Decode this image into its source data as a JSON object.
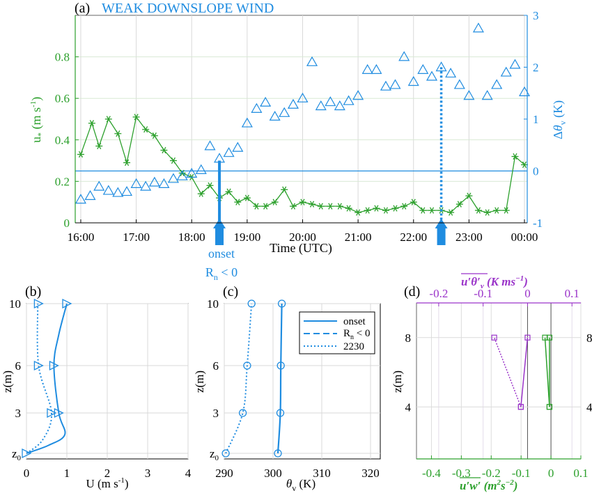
{
  "colors": {
    "green": "#2ca02c",
    "blue": "#1f8ce0",
    "purple": "#9a33c9",
    "grid": "#d9d9d9",
    "black": "#000000"
  },
  "chart_data": [
    {
      "panel": "(a)",
      "type": "scatter",
      "title": "WEAK DOWNSLOPE WIND",
      "xlabel": "Time (UTC)",
      "ylabel_left": "u* (m s-1)",
      "ylabel_right": "Δθv (K)",
      "xticks": [
        "16:00",
        "17:00",
        "18:00",
        "19:00",
        "20:00",
        "21:00",
        "22:00",
        "23:00",
        "00:00"
      ],
      "xlim": [
        15.9,
        24.05
      ],
      "ylim_left": [
        0,
        1.0
      ],
      "yticks_left": [
        "0",
        "0.2",
        "0.4",
        "0.6",
        "0.8"
      ],
      "ylim_right": [
        -1,
        3
      ],
      "yticks_right": [
        "-1",
        "0",
        "1",
        "2",
        "3"
      ],
      "grid": true,
      "series": [
        {
          "axis": "left",
          "marker": "asterisk",
          "color": "#2ca02c",
          "x": [
            16.0,
            16.2,
            16.33,
            16.5,
            16.67,
            16.83,
            17.0,
            17.17,
            17.33,
            17.5,
            17.67,
            17.83,
            18.0,
            18.17,
            18.33,
            18.5,
            18.67,
            18.83,
            19.0,
            19.17,
            19.33,
            19.5,
            19.67,
            19.83,
            20.0,
            20.17,
            20.33,
            20.5,
            20.67,
            20.83,
            21.0,
            21.17,
            21.33,
            21.5,
            21.67,
            21.83,
            22.0,
            22.17,
            22.33,
            22.5,
            22.67,
            22.83,
            23.0,
            23.17,
            23.33,
            23.5,
            23.67,
            23.83,
            24.0
          ],
          "y": [
            0.33,
            0.48,
            0.37,
            0.5,
            0.43,
            0.29,
            0.51,
            0.45,
            0.42,
            0.35,
            0.3,
            0.24,
            0.22,
            0.14,
            0.18,
            0.12,
            0.15,
            0.1,
            0.12,
            0.08,
            0.08,
            0.1,
            0.16,
            0.08,
            0.1,
            0.09,
            0.08,
            0.08,
            0.08,
            0.07,
            0.05,
            0.06,
            0.07,
            0.06,
            0.07,
            0.08,
            0.1,
            0.06,
            0.06,
            0.06,
            0.05,
            0.09,
            0.13,
            0.06,
            0.05,
            0.06,
            0.06,
            0.32,
            0.28
          ]
        },
        {
          "axis": "right",
          "marker": "triangle",
          "color": "#1f8ce0",
          "x": [
            16.0,
            16.17,
            16.33,
            16.5,
            16.67,
            16.83,
            17.0,
            17.17,
            17.33,
            17.5,
            17.67,
            17.83,
            18.0,
            18.17,
            18.33,
            18.5,
            18.67,
            18.83,
            19.0,
            19.17,
            19.33,
            19.5,
            19.67,
            19.83,
            20.0,
            20.17,
            20.33,
            20.5,
            20.67,
            20.83,
            21.0,
            21.17,
            21.33,
            21.5,
            21.67,
            21.83,
            22.0,
            22.17,
            22.33,
            22.5,
            22.67,
            22.83,
            23.0,
            23.17,
            23.33,
            23.5,
            23.67,
            23.83,
            24.0
          ],
          "y": [
            -0.55,
            -0.48,
            -0.3,
            -0.38,
            -0.42,
            -0.4,
            -0.25,
            -0.3,
            -0.22,
            -0.25,
            -0.15,
            -0.1,
            -0.05,
            0.02,
            0.48,
            0.24,
            0.35,
            0.45,
            0.92,
            1.2,
            1.32,
            1.05,
            1.12,
            1.28,
            1.4,
            2.1,
            1.25,
            1.33,
            1.25,
            1.35,
            1.45,
            1.95,
            1.95,
            1.63,
            1.66,
            2.2,
            1.72,
            1.95,
            1.82,
            2.0,
            1.88,
            1.66,
            1.45,
            2.75,
            1.45,
            1.66,
            1.9,
            2.05,
            1.52
          ]
        }
      ],
      "reference_line": {
        "axis": "right",
        "y": 0
      },
      "annotations": [
        {
          "label": "onset",
          "x": 18.5,
          "y_top": 0.3,
          "style": "solid"
        },
        {
          "label": "Rn < 0",
          "x": 18.5
        },
        {
          "label": "2230",
          "x": 22.5,
          "y_top": 2.0,
          "style": "dotted"
        }
      ]
    },
    {
      "panel": "(b)",
      "type": "line",
      "xlabel": "U (m s-1)",
      "ylabel": "z(m)",
      "xlim": [
        0,
        4
      ],
      "xticks": [
        "0",
        "1",
        "2",
        "3",
        "4"
      ],
      "yticks": [
        "z0",
        "3",
        "6",
        "10"
      ],
      "grid": true,
      "series": [
        {
          "name": "onset",
          "style": "solid",
          "points_z": [
            0,
            3,
            6,
            10
          ],
          "points_u": [
            0.0,
            0.75,
            0.7,
            1.0
          ]
        },
        {
          "name": "Rn < 0",
          "style": "dashed",
          "points_z": [
            0,
            3,
            6,
            10
          ],
          "points_u": [
            0.0,
            0.75,
            0.7,
            1.0
          ]
        },
        {
          "name": "2230",
          "style": "dotted",
          "points_z": [
            0,
            3,
            6,
            10
          ],
          "points_u": [
            0.0,
            0.6,
            0.3,
            0.3
          ]
        }
      ]
    },
    {
      "panel": "(c)",
      "type": "line",
      "xlabel": "θv (K)",
      "ylabel": "z(m)",
      "xlim": [
        290,
        322
      ],
      "xticks": [
        "290",
        "300",
        "310",
        "320"
      ],
      "yticks": [
        "z0",
        "3",
        "6",
        "10"
      ],
      "grid": true,
      "legend": [
        "onset",
        "Rn < 0",
        "2230"
      ],
      "series": [
        {
          "name": "onset",
          "style": "solid",
          "points_z": [
            0,
            3,
            6,
            10
          ],
          "points_theta": [
            301.0,
            301.5,
            301.6,
            301.8
          ]
        },
        {
          "name": "Rn < 0",
          "style": "dashed",
          "points_z": [
            0,
            3,
            6,
            10
          ],
          "points_theta": [
            301.0,
            301.5,
            301.6,
            301.8
          ]
        },
        {
          "name": "2230",
          "style": "dotted",
          "points_z": [
            0,
            3,
            6,
            10
          ],
          "points_theta": [
            290.3,
            293.8,
            294.7,
            295.6
          ]
        }
      ]
    },
    {
      "panel": "(d)",
      "type": "line",
      "xlabel_bottom": "u'w' (m^2 s^-2)",
      "xlabel_top": "u'θ'v (K ms^-1)",
      "ylabel": "z(m)",
      "xlim_bottom": [
        -0.45,
        0.1
      ],
      "xticks_bottom": [
        "-0.4",
        "-0.3",
        "-0.2",
        "-0.1",
        "0",
        "0.1"
      ],
      "xlim_top": [
        -0.25,
        0.12
      ],
      "xticks_top": [
        "-0.2",
        "-0.1",
        "0",
        "0.1"
      ],
      "yticks": [
        "4",
        "8"
      ],
      "ylim": [
        1,
        10
      ],
      "series": [
        {
          "axis": "bottom",
          "color": "#2ca02c",
          "style": "solid",
          "z": [
            4,
            8
          ],
          "x": [
            -0.005,
            -0.005
          ]
        },
        {
          "axis": "bottom",
          "color": "#2ca02c",
          "style": "solid",
          "z": [
            4,
            8
          ],
          "x": [
            -0.005,
            -0.02
          ]
        },
        {
          "axis": "top",
          "color": "#9a33c9",
          "style": "solid",
          "z": [
            4,
            8
          ],
          "x": [
            -0.015,
            0.0
          ]
        },
        {
          "axis": "top",
          "color": "#9a33c9",
          "style": "dotted",
          "z": [
            4,
            8
          ],
          "x": [
            -0.015,
            -0.075
          ]
        }
      ]
    }
  ],
  "texts": {
    "panel_a": "(a)",
    "panel_a_title": "WEAK DOWNSLOPE WIND",
    "panel_b": "(b)",
    "panel_c": "(c)",
    "panel_d": "(d)",
    "xlabel_a": "Time (UTC)",
    "onset": "onset",
    "rn_label": "R",
    "rn_sub": "n",
    "rn_rest": " < 0",
    "xlabel_b": "U (m s",
    "xlabel_b_sup": "-1",
    "xlabel_b_end": ")",
    "xlabel_c_theta": "θ",
    "xlabel_c_sub": "v",
    "xlabel_c_rest": " (K)",
    "ylabel_z": "z(m)",
    "legend_onset": "onset",
    "legend_rn": "R",
    "legend_rn_sub": "n",
    "legend_rn_rest": " < 0",
    "legend_2230": "2230",
    "d_top_label": "u'θ'v (K ms⁻¹)",
    "d_bottom_label": "u'w' (m²s⁻²)"
  }
}
